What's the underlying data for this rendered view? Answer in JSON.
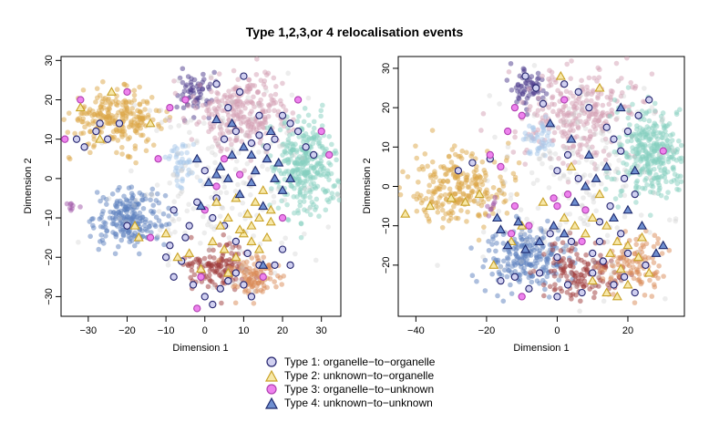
{
  "figure": {
    "title": "Type 1,2,3,or 4 relocalisation events",
    "xlabel": "Dimension 1",
    "ylabel": "Dimension 2"
  },
  "legend": [
    {
      "label": "Type 1: organelle−to−organelle",
      "marker": "circle",
      "fill": "#d0d0f0",
      "stroke": "#23236e"
    },
    {
      "label": "Type 2: unknown−to−organelle",
      "marker": "triangle",
      "fill": "#f7e8a8",
      "stroke": "#c9a227"
    },
    {
      "label": "Type 3: organelle−to−unknown",
      "marker": "circle",
      "fill": "#ee82ee",
      "stroke": "#b040b0"
    },
    {
      "label": "Type 4: unknown−to−unknown",
      "marker": "triangle",
      "fill": "#6f8fd0",
      "stroke": "#1e2a6e"
    }
  ],
  "cluster_colors": {
    "golden": "#dca645",
    "blue": "#5b7fbe",
    "purple": "#4b3a8c",
    "pink": "#d4a0b4",
    "teal": "#86cfc0",
    "lightblue": "#a8c8ea",
    "darkred": "#9e3a3a",
    "orange": "#d98a55",
    "magenta": "#a055a8",
    "grey": "#cccccc"
  },
  "chart_data": [
    {
      "type": "scatter",
      "xlabel": "Dimension 1",
      "ylabel": "Dimension 2",
      "xlim": [
        -37,
        35
      ],
      "ylim": [
        -35,
        31
      ],
      "xticks": [
        -30,
        -20,
        -10,
        0,
        10,
        20,
        30
      ],
      "yticks": [
        -30,
        -20,
        -10,
        0,
        10,
        20,
        30
      ],
      "grid": false,
      "clusters": [
        {
          "color": "golden",
          "cx": -23,
          "cy": 15,
          "sx": 6,
          "sy": 3.5,
          "n": 260
        },
        {
          "color": "blue",
          "cx": -19,
          "cy": -10,
          "sx": 4.5,
          "sy": 3.5,
          "n": 220
        },
        {
          "color": "purple",
          "cx": -3,
          "cy": 22,
          "sx": 2.5,
          "sy": 3,
          "n": 60
        },
        {
          "color": "pink",
          "cx": 10,
          "cy": 17,
          "sx": 6,
          "sy": 5,
          "n": 280
        },
        {
          "color": "teal",
          "cx": 26,
          "cy": 3,
          "sx": 4,
          "sy": 6,
          "n": 320
        },
        {
          "color": "lightblue",
          "cx": -6,
          "cy": 4,
          "sx": 2,
          "sy": 3,
          "n": 45
        },
        {
          "color": "darkred",
          "cx": 3,
          "cy": -22,
          "sx": 4.5,
          "sy": 3,
          "n": 140
        },
        {
          "color": "orange",
          "cx": 13,
          "cy": -25,
          "sx": 3.5,
          "sy": 2.5,
          "n": 110
        },
        {
          "color": "magenta",
          "cx": -34,
          "cy": -7,
          "sx": 1,
          "sy": 1,
          "n": 8
        },
        {
          "color": "grey",
          "cx": 5,
          "cy": -2,
          "sx": 12,
          "sy": 12,
          "n": 200
        }
      ],
      "events": {
        "type1": [
          [
            -33,
            10
          ],
          [
            -31,
            8
          ],
          [
            -28,
            12
          ],
          [
            -27,
            14
          ],
          [
            -25,
            10
          ],
          [
            -22,
            14
          ],
          [
            -20,
            -12
          ],
          [
            -8,
            -8
          ],
          [
            -5,
            -15
          ],
          [
            -9,
            -17
          ],
          [
            -8,
            -25
          ],
          [
            -3,
            -27
          ],
          [
            0,
            -30
          ],
          [
            2,
            -32
          ],
          [
            4,
            -28
          ],
          [
            6,
            -26
          ],
          [
            8,
            -24
          ],
          [
            10,
            -27
          ],
          [
            12,
            -30
          ],
          [
            14,
            -22
          ],
          [
            5,
            10
          ],
          [
            8,
            12
          ],
          [
            12,
            9
          ],
          [
            14,
            11
          ],
          [
            16,
            8
          ],
          [
            18,
            10
          ],
          [
            20,
            16
          ],
          [
            22,
            14
          ],
          [
            24,
            12
          ],
          [
            26,
            8
          ],
          [
            28,
            6
          ],
          [
            18,
            -22
          ],
          [
            3,
            24
          ],
          [
            6,
            18
          ],
          [
            9,
            22
          ],
          [
            10,
            26
          ],
          [
            0,
            2
          ],
          [
            3,
            -5
          ],
          [
            2,
            -10
          ],
          [
            5,
            -12
          ],
          [
            8,
            -16
          ],
          [
            11,
            -19
          ],
          [
            -2,
            -6
          ],
          [
            -4,
            -12
          ],
          [
            14,
            16
          ],
          [
            -10,
            -20
          ],
          [
            -6,
            -21
          ],
          [
            22,
            -22
          ],
          [
            20,
            -18
          ]
        ],
        "type2": [
          [
            -32,
            18
          ],
          [
            -27,
            10
          ],
          [
            -24,
            22
          ],
          [
            -14,
            14
          ],
          [
            -17,
            -15
          ],
          [
            -18,
            -12
          ],
          [
            -10,
            -14
          ],
          [
            -7,
            -20
          ],
          [
            -4,
            -19
          ],
          [
            2,
            -16
          ],
          [
            5,
            -18
          ],
          [
            8,
            -20
          ],
          [
            10,
            -14
          ],
          [
            12,
            -12
          ],
          [
            14,
            -10
          ],
          [
            16,
            -15
          ],
          [
            8,
            -5
          ],
          [
            11,
            -9
          ],
          [
            13,
            -6
          ],
          [
            15,
            -3
          ],
          [
            17,
            -8
          ],
          [
            6,
            -10
          ],
          [
            9,
            -13
          ],
          [
            12,
            -16
          ],
          [
            4,
            -12
          ],
          [
            3,
            -6
          ],
          [
            6,
            -24
          ],
          [
            -1,
            -23
          ],
          [
            14,
            -18
          ],
          [
            17,
            -11
          ]
        ],
        "type3": [
          [
            -36,
            10
          ],
          [
            -32,
            20
          ],
          [
            -20,
            22
          ],
          [
            -14,
            -15
          ],
          [
            -5,
            20
          ],
          [
            -9,
            18
          ],
          [
            -12,
            5
          ],
          [
            -1,
            -25
          ],
          [
            -2,
            -33
          ],
          [
            0,
            -8
          ],
          [
            3,
            -2
          ],
          [
            5,
            5
          ],
          [
            9,
            1
          ],
          [
            20,
            -10
          ],
          [
            15,
            -25
          ],
          [
            32,
            6
          ],
          [
            24,
            20
          ],
          [
            30,
            12
          ]
        ],
        "type4": [
          [
            -2,
            5
          ],
          [
            1,
            -1
          ],
          [
            4,
            3
          ],
          [
            7,
            6
          ],
          [
            10,
            8
          ],
          [
            13,
            2
          ],
          [
            16,
            5
          ],
          [
            18,
            0
          ],
          [
            20,
            -3
          ],
          [
            12,
            -1
          ],
          [
            9,
            -4
          ],
          [
            6,
            0
          ],
          [
            -1,
            -7
          ],
          [
            3,
            1
          ],
          [
            15,
            -7
          ],
          [
            22,
            0
          ],
          [
            3,
            15
          ],
          [
            7,
            14
          ],
          [
            12,
            6
          ],
          [
            15,
            -22
          ],
          [
            19,
            4
          ],
          [
            17,
            12
          ]
        ]
      }
    },
    {
      "type": "scatter",
      "xlabel": "Dimension 1",
      "ylabel": "Dimension 2",
      "xlim": [
        -45,
        36
      ],
      "ylim": [
        -33,
        33
      ],
      "xticks": [
        -40,
        -20,
        0,
        20
      ],
      "yticks": [
        -20,
        -10,
        0,
        10,
        20,
        30
      ],
      "grid": false,
      "clusters": [
        {
          "color": "golden",
          "cx": -28,
          "cy": 0,
          "sx": 7,
          "sy": 4.5,
          "n": 260
        },
        {
          "color": "blue",
          "cx": -8,
          "cy": -18,
          "sx": 6,
          "sy": 4,
          "n": 220
        },
        {
          "color": "purple",
          "cx": -8,
          "cy": 25,
          "sx": 2.5,
          "sy": 3,
          "n": 60
        },
        {
          "color": "pink",
          "cx": 6,
          "cy": 18,
          "sx": 8,
          "sy": 6,
          "n": 280
        },
        {
          "color": "teal",
          "cx": 26,
          "cy": 8,
          "sx": 4.5,
          "sy": 6,
          "n": 320
        },
        {
          "color": "lightblue",
          "cx": -5,
          "cy": 12,
          "sx": 2,
          "sy": 2.5,
          "n": 45
        },
        {
          "color": "darkred",
          "cx": 7,
          "cy": -22,
          "sx": 6,
          "sy": 3.5,
          "n": 140
        },
        {
          "color": "orange",
          "cx": 22,
          "cy": -20,
          "sx": 5,
          "sy": 3.5,
          "n": 110
        },
        {
          "color": "magenta",
          "cx": -18,
          "cy": -5,
          "sx": 1,
          "sy": 1,
          "n": 8
        },
        {
          "color": "grey",
          "cx": 5,
          "cy": 0,
          "sx": 13,
          "sy": 13,
          "n": 200
        }
      ],
      "events": {
        "type1": [
          [
            -28,
            4
          ],
          [
            -24,
            6
          ],
          [
            -19,
            7
          ],
          [
            -9,
            28
          ],
          [
            -6,
            25
          ],
          [
            -4,
            21
          ],
          [
            -12,
            -23
          ],
          [
            -8,
            -26
          ],
          [
            -5,
            -22
          ],
          [
            0,
            -18
          ],
          [
            3,
            -25
          ],
          [
            7,
            -27
          ],
          [
            10,
            -22
          ],
          [
            13,
            -19
          ],
          [
            16,
            -25
          ],
          [
            19,
            -23
          ],
          [
            22,
            -27
          ],
          [
            25,
            -20
          ],
          [
            14,
            15
          ],
          [
            16,
            12
          ],
          [
            18,
            9
          ],
          [
            20,
            14
          ],
          [
            23,
            18
          ],
          [
            26,
            22
          ],
          [
            19,
            2
          ],
          [
            22,
            -2
          ],
          [
            0,
            4
          ],
          [
            3,
            8
          ],
          [
            6,
            2
          ],
          [
            12,
            -9
          ],
          [
            15,
            -5
          ],
          [
            18,
            -12
          ],
          [
            -2,
            -12
          ],
          [
            4,
            -14
          ],
          [
            10,
            -17
          ],
          [
            2,
            26
          ],
          [
            6,
            24
          ],
          [
            9,
            20
          ],
          [
            -16,
            -24
          ],
          [
            0,
            -28
          ],
          [
            20,
            -17
          ],
          [
            12,
            -14
          ]
        ],
        "type2": [
          [
            -43,
            -7
          ],
          [
            -36,
            -5
          ],
          [
            -30,
            -3
          ],
          [
            -26,
            -4
          ],
          [
            -22,
            -2
          ],
          [
            -18,
            -20
          ],
          [
            -13,
            -14
          ],
          [
            -10,
            -10
          ],
          [
            -4,
            -4
          ],
          [
            2,
            -8
          ],
          [
            5,
            -10
          ],
          [
            8,
            -12
          ],
          [
            10,
            -8
          ],
          [
            12,
            -2
          ],
          [
            14,
            -10
          ],
          [
            17,
            -14
          ],
          [
            20,
            -15
          ],
          [
            23,
            -18
          ],
          [
            26,
            -22
          ],
          [
            15,
            -17
          ],
          [
            18,
            -21
          ],
          [
            10,
            -24
          ],
          [
            14,
            -27
          ],
          [
            17,
            -28
          ],
          [
            20,
            -25
          ],
          [
            24,
            -13
          ],
          [
            4,
            5
          ],
          [
            1,
            28
          ],
          [
            12,
            25
          ]
        ],
        "type3": [
          [
            -19,
            8
          ],
          [
            -16,
            5
          ],
          [
            -12,
            20
          ],
          [
            -10,
            18
          ],
          [
            -13,
            -12
          ],
          [
            -12,
            -5
          ],
          [
            -8,
            -10
          ],
          [
            -1,
            -3
          ],
          [
            0,
            -5
          ],
          [
            3,
            -2
          ],
          [
            8,
            -6
          ],
          [
            7,
            -14
          ],
          [
            -10,
            -28
          ],
          [
            -14,
            14
          ],
          [
            2,
            22
          ],
          [
            30,
            9
          ]
        ],
        "type4": [
          [
            -17,
            -8
          ],
          [
            -16,
            -11
          ],
          [
            -14,
            -15
          ],
          [
            -11,
            -9
          ],
          [
            -9,
            -16
          ],
          [
            -5,
            -14
          ],
          [
            -1,
            -10
          ],
          [
            2,
            -12
          ],
          [
            5,
            -4
          ],
          [
            8,
            0
          ],
          [
            11,
            2
          ],
          [
            14,
            5
          ],
          [
            9,
            8
          ],
          [
            4,
            12
          ],
          [
            -2,
            16
          ],
          [
            16,
            -8
          ],
          [
            20,
            -6
          ],
          [
            24,
            -10
          ],
          [
            28,
            -17
          ],
          [
            30,
            -15
          ],
          [
            18,
            20
          ],
          [
            22,
            4
          ]
        ]
      }
    }
  ]
}
